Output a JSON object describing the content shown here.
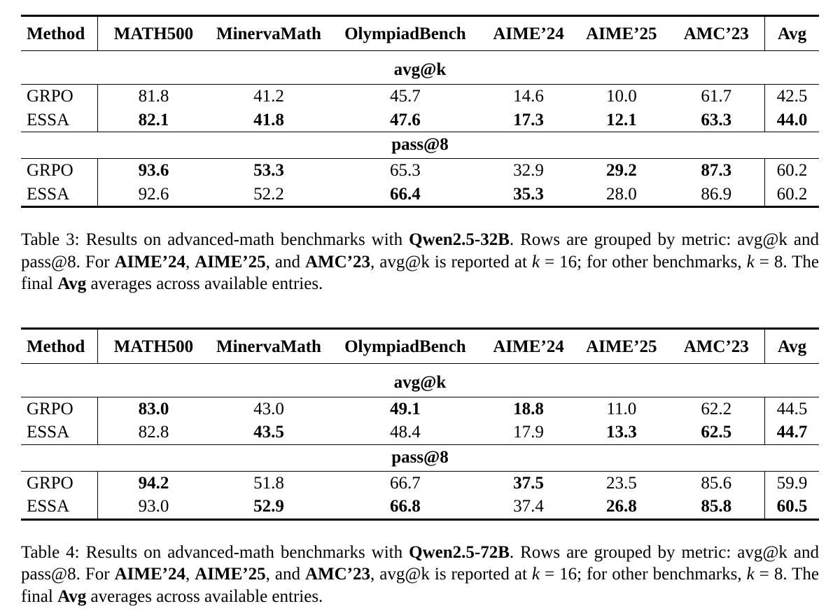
{
  "tables": [
    {
      "columns": [
        "Method",
        "MATH500",
        "MinervaMath",
        "OlympiadBench",
        "AIME’24",
        "AIME’25",
        "AMC’23",
        "Avg"
      ],
      "sections": [
        {
          "label": "avg@k",
          "rows": [
            {
              "method": "GRPO",
              "values": [
                "81.8",
                "41.2",
                "45.7",
                "14.6",
                "10.0",
                "61.7",
                "42.5"
              ],
              "bold": [
                false,
                false,
                false,
                false,
                false,
                false,
                false
              ]
            },
            {
              "method": "ESSA",
              "values": [
                "82.1",
                "41.8",
                "47.6",
                "17.3",
                "12.1",
                "63.3",
                "44.0"
              ],
              "bold": [
                true,
                true,
                true,
                true,
                true,
                true,
                true
              ]
            }
          ]
        },
        {
          "label": "pass@8",
          "rows": [
            {
              "method": "GRPO",
              "values": [
                "93.6",
                "53.3",
                "65.3",
                "32.9",
                "29.2",
                "87.3",
                "60.2"
              ],
              "bold": [
                true,
                true,
                false,
                false,
                true,
                true,
                false
              ]
            },
            {
              "method": "ESSA",
              "values": [
                "92.6",
                "52.2",
                "66.4",
                "35.3",
                "28.0",
                "86.9",
                "60.2"
              ],
              "bold": [
                false,
                false,
                true,
                true,
                false,
                false,
                false
              ]
            }
          ]
        }
      ],
      "caption_segments": [
        {
          "t": "Table 3: Results on advanced-math benchmarks with "
        },
        {
          "t": "Qwen2.5-32B",
          "b": true
        },
        {
          "t": ". Rows are grouped by metric: avg@k and pass@8. For "
        },
        {
          "t": "AIME’24",
          "b": true
        },
        {
          "t": ", "
        },
        {
          "t": "AIME’25",
          "b": true
        },
        {
          "t": ", and "
        },
        {
          "t": "AMC’23",
          "b": true
        },
        {
          "t": ", avg@k is reported at "
        },
        {
          "t": "k",
          "i": true
        },
        {
          "t": " = 16; for other benchmarks, "
        },
        {
          "t": "k",
          "i": true
        },
        {
          "t": " = 8. The final "
        },
        {
          "t": "Avg",
          "b": true
        },
        {
          "t": " averages across available entries."
        }
      ]
    },
    {
      "columns": [
        "Method",
        "MATH500",
        "MinervaMath",
        "OlympiadBench",
        "AIME’24",
        "AIME’25",
        "AMC’23",
        "Avg"
      ],
      "sections": [
        {
          "label": "avg@k",
          "rows": [
            {
              "method": "GRPO",
              "values": [
                "83.0",
                "43.0",
                "49.1",
                "18.8",
                "11.0",
                "62.2",
                "44.5"
              ],
              "bold": [
                true,
                false,
                true,
                true,
                false,
                false,
                false
              ]
            },
            {
              "method": "ESSA",
              "values": [
                "82.8",
                "43.5",
                "48.4",
                "17.9",
                "13.3",
                "62.5",
                "44.7"
              ],
              "bold": [
                false,
                true,
                false,
                false,
                true,
                true,
                true
              ]
            }
          ]
        },
        {
          "label": "pass@8",
          "rows": [
            {
              "method": "GRPO",
              "values": [
                "94.2",
                "51.8",
                "66.7",
                "37.5",
                "23.5",
                "85.6",
                "59.9"
              ],
              "bold": [
                true,
                false,
                false,
                true,
                false,
                false,
                false
              ]
            },
            {
              "method": "ESSA",
              "values": [
                "93.0",
                "52.9",
                "66.8",
                "37.4",
                "26.8",
                "85.8",
                "60.5"
              ],
              "bold": [
                false,
                true,
                true,
                false,
                true,
                true,
                true
              ]
            }
          ]
        }
      ],
      "caption_segments": [
        {
          "t": "Table 4: Results on advanced-math benchmarks with "
        },
        {
          "t": "Qwen2.5-72B",
          "b": true
        },
        {
          "t": ". Rows are grouped by metric: avg@k and pass@8. For "
        },
        {
          "t": "AIME’24",
          "b": true
        },
        {
          "t": ", "
        },
        {
          "t": "AIME’25",
          "b": true
        },
        {
          "t": ", and "
        },
        {
          "t": "AMC’23",
          "b": true
        },
        {
          "t": ", avg@k is reported at "
        },
        {
          "t": "k",
          "i": true
        },
        {
          "t": " = 16; for other benchmarks, "
        },
        {
          "t": "k",
          "i": true
        },
        {
          "t": " = 8. The final "
        },
        {
          "t": "Avg",
          "b": true
        },
        {
          "t": " averages across available entries."
        }
      ]
    }
  ]
}
